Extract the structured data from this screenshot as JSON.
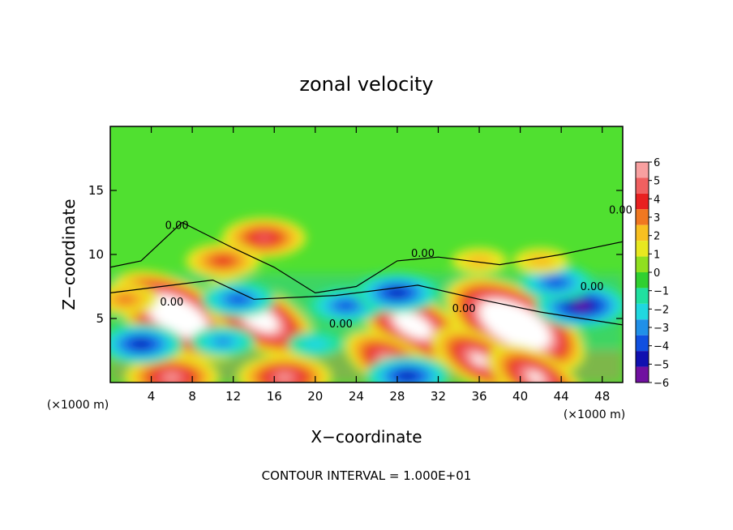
{
  "chart_data": {
    "type": "heatmap",
    "title": "zonal velocity",
    "xlabel": "X−coordinate",
    "ylabel": "Z−coordinate",
    "x_unit_left": "(×1000 m)",
    "x_unit_right": "(×1000 m)",
    "xlim": [
      0,
      50
    ],
    "ylim": [
      0,
      20
    ],
    "x_ticks": [
      4,
      8,
      12,
      16,
      20,
      24,
      28,
      32,
      36,
      40,
      44,
      48
    ],
    "x_tick_labels": [
      "4",
      "8",
      "12",
      "16",
      "20",
      "24",
      "28",
      "32",
      "36",
      "40",
      "44",
      "48"
    ],
    "y_ticks": [
      5,
      10,
      15
    ],
    "y_tick_labels": [
      "5",
      "10",
      "15"
    ],
    "colorbar": {
      "min": -6,
      "max": 6,
      "ticks": [
        6,
        5,
        4,
        3,
        2,
        1,
        0,
        -1,
        -2,
        -3,
        -4,
        -5,
        -6
      ],
      "tick_labels": [
        "6",
        "5",
        "4",
        "3",
        "2",
        "1",
        "0",
        "−1",
        "−2",
        "−3",
        "−4",
        "−5",
        "−6"
      ],
      "colors": [
        "#f8a0a0",
        "#f06060",
        "#e82020",
        "#f07820",
        "#f8c020",
        "#e8e820",
        "#90e020",
        "#30d030",
        "#20e0a0",
        "#20d8e0",
        "#2090e8",
        "#1050e0",
        "#1010b0",
        "#7010a0"
      ]
    },
    "contour_labels": [
      {
        "text": "0.00",
        "x": 6.5,
        "z": 12.0
      },
      {
        "text": "0.00",
        "x": 6.0,
        "z": 6.0
      },
      {
        "text": "0.00",
        "x": 22.5,
        "z": 4.3
      },
      {
        "text": "0.00",
        "x": 30.5,
        "z": 9.8
      },
      {
        "text": "0.00",
        "x": 34.5,
        "z": 5.5
      },
      {
        "text": "0.00",
        "x": 47.0,
        "z": 7.2
      },
      {
        "text": "0.00",
        "x": 49.8,
        "z": 13.2
      }
    ],
    "features": [
      {
        "kind": "max",
        "x": 6.5,
        "z": 5.2,
        "value": 11
      },
      {
        "kind": "max",
        "x": 14.5,
        "z": 5.0,
        "value": 9
      },
      {
        "kind": "max",
        "x": 29.5,
        "z": 4.5,
        "value": 9
      },
      {
        "kind": "max",
        "x": 39.5,
        "z": 4.5,
        "value": 12
      },
      {
        "kind": "max",
        "x": 27.5,
        "z": 1.5,
        "value": 7
      },
      {
        "kind": "max",
        "x": 36.0,
        "z": 1.8,
        "value": 7
      },
      {
        "kind": "max",
        "x": 15.0,
        "z": 11.3,
        "value": 5
      },
      {
        "kind": "max",
        "x": 11.0,
        "z": 9.5,
        "value": 4
      },
      {
        "kind": "max",
        "x": 6.0,
        "z": 0.4,
        "value": 6
      },
      {
        "kind": "max",
        "x": 17.0,
        "z": 0.4,
        "value": 6
      },
      {
        "kind": "max",
        "x": 41.5,
        "z": 0.4,
        "value": 7
      },
      {
        "kind": "min",
        "x": 3.0,
        "z": 3.0,
        "value": -5
      },
      {
        "kind": "min",
        "x": 12.5,
        "z": 6.5,
        "value": -4
      },
      {
        "kind": "min",
        "x": 23.0,
        "z": 6.0,
        "value": -4
      },
      {
        "kind": "min",
        "x": 28.0,
        "z": 7.0,
        "value": -5
      },
      {
        "kind": "min",
        "x": 46.0,
        "z": 6.0,
        "value": -6
      },
      {
        "kind": "min",
        "x": 29.0,
        "z": 0.5,
        "value": -5
      },
      {
        "kind": "min",
        "x": 43.5,
        "z": 7.8,
        "value": -4
      },
      {
        "kind": "min",
        "x": 20.0,
        "z": 3.0,
        "value": -2
      },
      {
        "kind": "min",
        "x": 11.0,
        "z": 3.2,
        "value": -3
      },
      {
        "kind": "max",
        "x": 1.5,
        "z": 6.5,
        "value": 3
      },
      {
        "kind": "max",
        "x": 42.0,
        "z": 9.5,
        "value": 2
      },
      {
        "kind": "max",
        "x": 36.0,
        "z": 9.5,
        "value": 2
      }
    ]
  },
  "footer": {
    "contour_interval": "CONTOUR INTERVAL = 1.000E+01"
  }
}
